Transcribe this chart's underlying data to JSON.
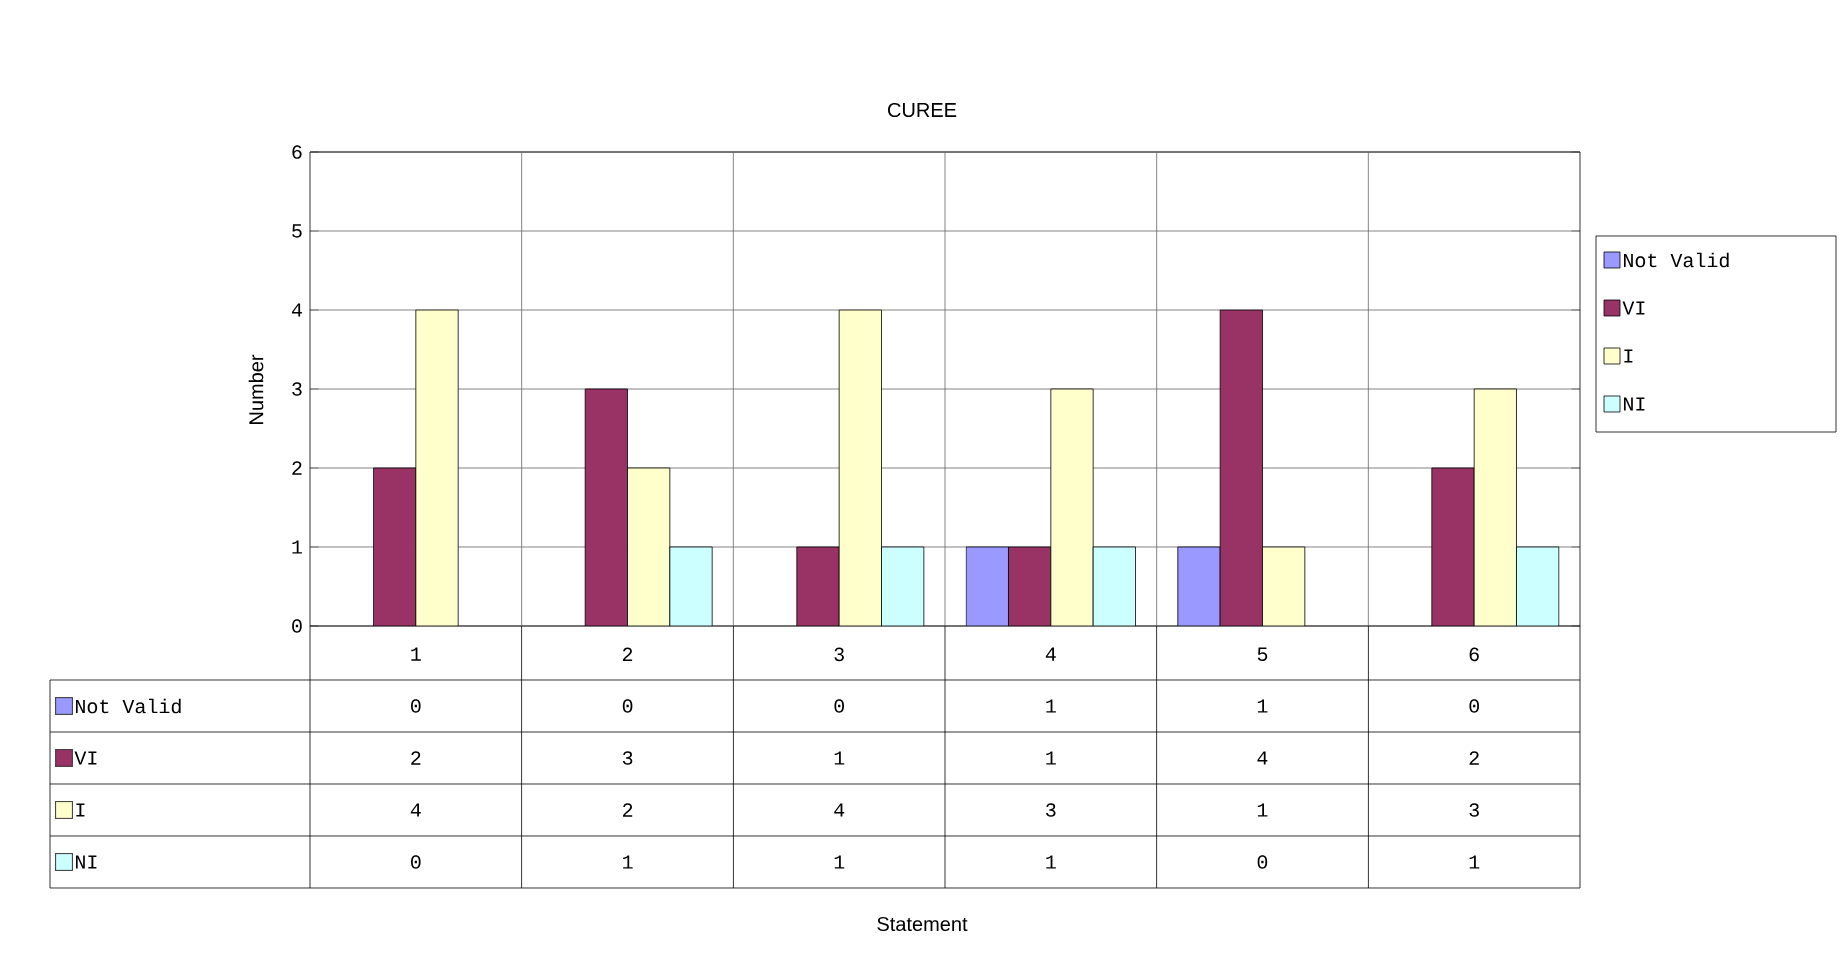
{
  "chart_data": {
    "type": "bar",
    "title": "CUREE",
    "annotations": [
      "Statement"
    ],
    "ylabel": "Number",
    "categories": [
      "1",
      "2",
      "3",
      "4",
      "5",
      "6"
    ],
    "series": [
      {
        "name": "Not Valid",
        "color": "#9999ff",
        "values": [
          0,
          0,
          0,
          1,
          1,
          0
        ]
      },
      {
        "name": "VI",
        "color": "#993366",
        "values": [
          2,
          3,
          1,
          1,
          4,
          2
        ]
      },
      {
        "name": "I",
        "color": "#ffffcc",
        "values": [
          4,
          2,
          4,
          3,
          1,
          3
        ]
      },
      {
        "name": "NI",
        "color": "#ccffff",
        "values": [
          0,
          1,
          1,
          1,
          0,
          1
        ]
      }
    ],
    "ylim": [
      0,
      6
    ],
    "yticks": [
      0,
      1,
      2,
      3,
      4,
      5,
      6
    ],
    "grid": true,
    "legend": "right",
    "data_labels": true
  }
}
